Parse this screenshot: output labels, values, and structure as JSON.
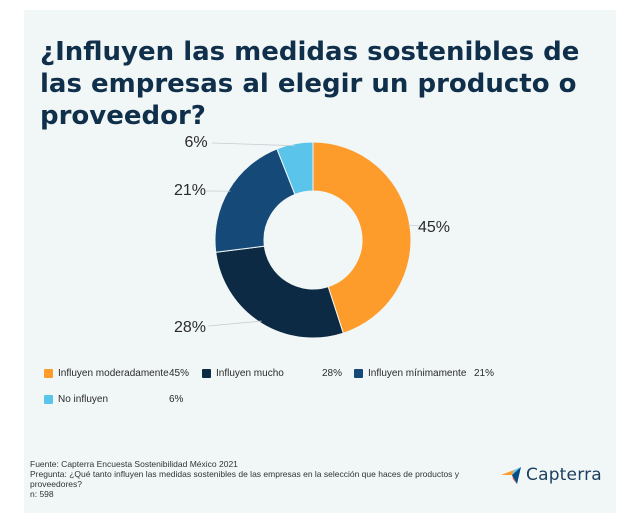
{
  "title": "¿Influyen las medidas sostenibles de las empresas al elegir un producto o proveedor?",
  "chart_data": {
    "type": "pie",
    "donut": true,
    "categories": [
      "Influyen moderadamente",
      "Influyen mucho",
      "Influyen mínimamente",
      "No influyen"
    ],
    "values": [
      45,
      28,
      21,
      6
    ],
    "data_labels": [
      "45%",
      "28%",
      "21%",
      "6%"
    ],
    "legend_values": [
      "45%",
      "28%",
      "21%",
      "6%"
    ],
    "colors": [
      "#fd9c2b",
      "#0d2a44",
      "#154a78",
      "#5bc4ea"
    ],
    "legend_placement": "bottom"
  },
  "footer": {
    "source": "Fuente: Capterra Encuesta Sostenibilidad México 2021",
    "question": "Pregunta: ¿Qué tanto influyen las medidas sostenibles de las empresas en la selección que haces de productos y proveedores?",
    "n": "n: 598"
  },
  "brand": {
    "name": "Capterra",
    "colors": [
      "#ff9d28",
      "#68c5ed",
      "#044d80",
      "#e54747"
    ]
  }
}
